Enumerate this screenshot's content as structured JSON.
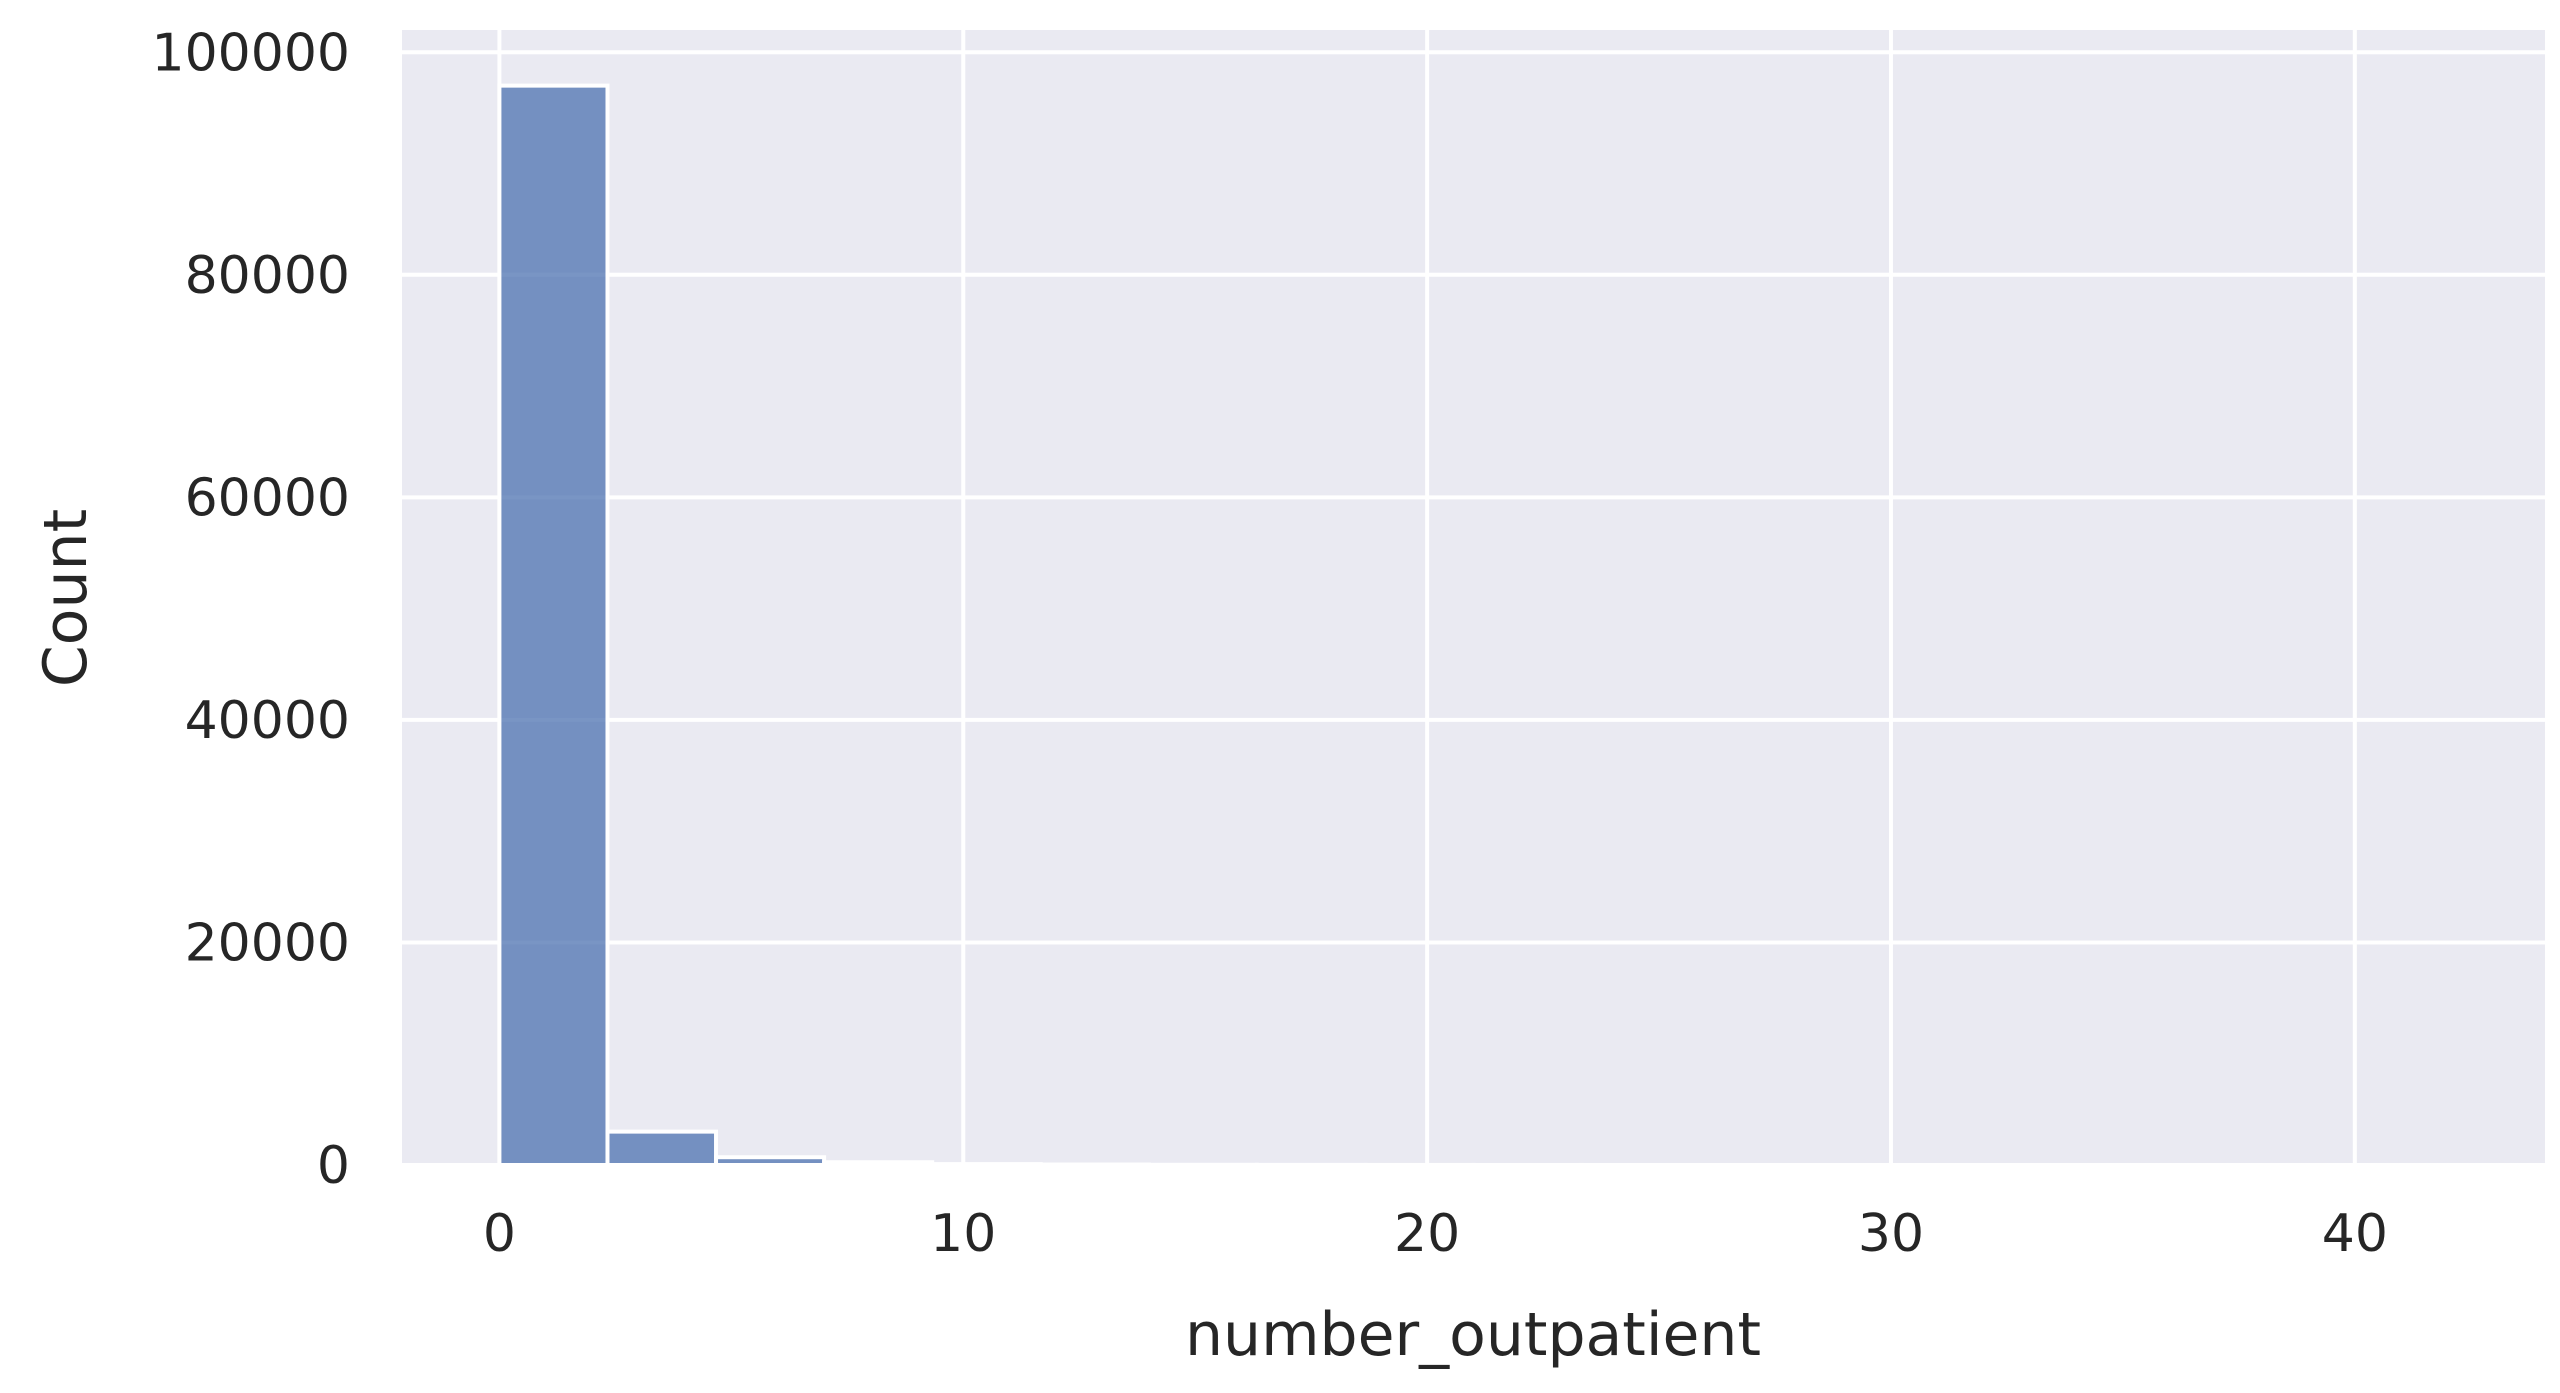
{
  "chart_data": {
    "type": "bar",
    "title": "",
    "xlabel": "number_outpatient",
    "ylabel": "Count",
    "xlim": [
      -2.1,
      44.1
    ],
    "ylim": [
      0,
      102000
    ],
    "x_ticks": [
      0,
      10,
      20,
      30,
      40
    ],
    "y_ticks": [
      0,
      20000,
      40000,
      60000,
      80000,
      100000
    ],
    "grid": true,
    "bin_width": 2.33,
    "bins": [
      {
        "start": 0.0,
        "end": 2.33,
        "count": 97000
      },
      {
        "start": 2.33,
        "end": 4.67,
        "count": 3000
      },
      {
        "start": 4.67,
        "end": 7.0,
        "count": 700
      },
      {
        "start": 7.0,
        "end": 9.33,
        "count": 250
      },
      {
        "start": 9.33,
        "end": 11.67,
        "count": 80
      },
      {
        "start": 11.67,
        "end": 14.0,
        "count": 40
      },
      {
        "start": 14.0,
        "end": 16.33,
        "count": 20
      },
      {
        "start": 16.33,
        "end": 18.67,
        "count": 10
      },
      {
        "start": 18.67,
        "end": 21.0,
        "count": 5
      },
      {
        "start": 21.0,
        "end": 23.33,
        "count": 4
      },
      {
        "start": 23.33,
        "end": 25.67,
        "count": 3
      },
      {
        "start": 25.67,
        "end": 28.0,
        "count": 2
      },
      {
        "start": 28.0,
        "end": 30.33,
        "count": 2
      },
      {
        "start": 30.33,
        "end": 32.67,
        "count": 1
      },
      {
        "start": 32.67,
        "end": 35.0,
        "count": 1
      },
      {
        "start": 35.0,
        "end": 37.33,
        "count": 1
      },
      {
        "start": 37.33,
        "end": 39.67,
        "count": 1
      },
      {
        "start": 39.67,
        "end": 42.0,
        "count": 1
      }
    ],
    "colors": {
      "plot_background": "#eaeaf2",
      "bar": "#4c72b0",
      "grid": "#ffffff",
      "text": "#262626"
    }
  }
}
